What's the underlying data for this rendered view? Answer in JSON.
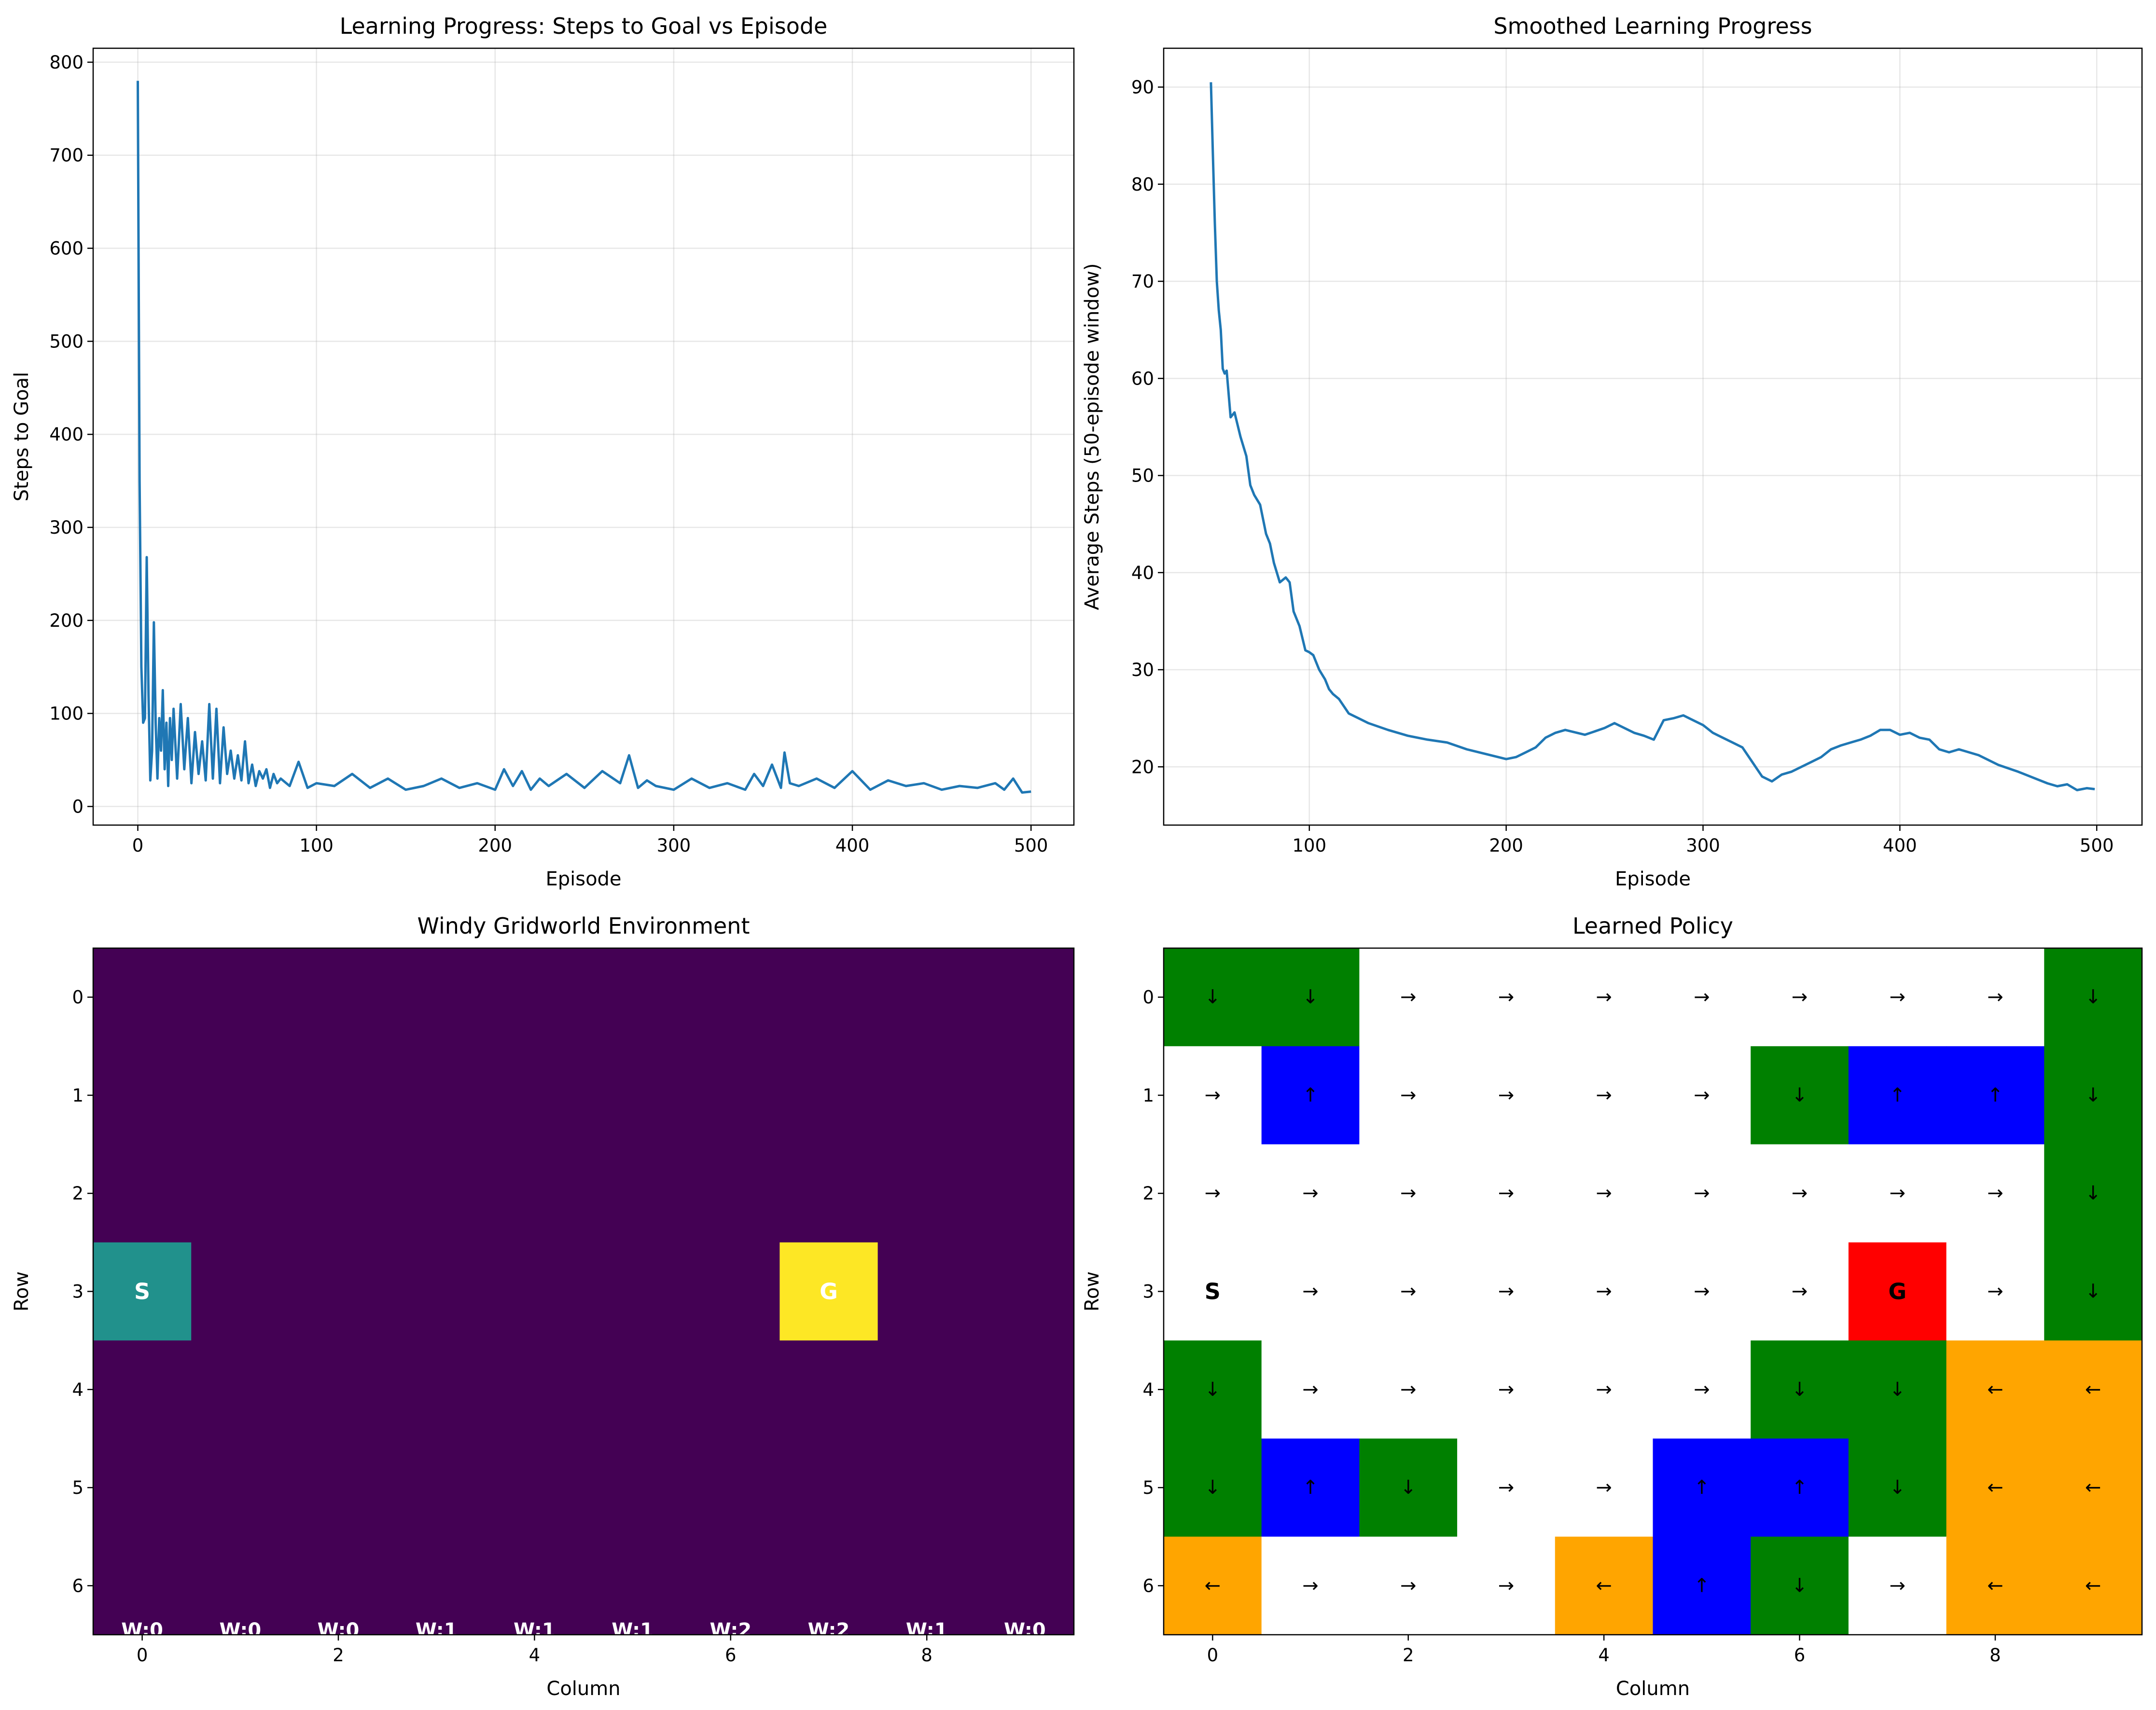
{
  "chart_data": [
    {
      "type": "line",
      "title": "Learning Progress: Steps to Goal vs Episode",
      "xlabel": "Episode",
      "ylabel": "Steps to Goal",
      "xlim": [
        -25,
        524
      ],
      "ylim": [
        -20,
        815
      ],
      "xticks": [
        0,
        100,
        200,
        300,
        400,
        500
      ],
      "yticks": [
        0,
        100,
        200,
        300,
        400,
        500,
        600,
        700,
        800
      ],
      "grid": true,
      "color": "#1f77b4",
      "series": [
        {
          "x": [
            0,
            1,
            2,
            3,
            4,
            5,
            6,
            7,
            8,
            9,
            10,
            11,
            12,
            13,
            14,
            15,
            16,
            17,
            18,
            19,
            20,
            22,
            24,
            26,
            28,
            30,
            32,
            34,
            36,
            38,
            40,
            42,
            44,
            46,
            48,
            50,
            52,
            54,
            56,
            58,
            60,
            62,
            64,
            66,
            68,
            70,
            72,
            74,
            76,
            78,
            80,
            85,
            90,
            95,
            100,
            110,
            120,
            130,
            140,
            150,
            160,
            170,
            180,
            190,
            200,
            205,
            210,
            215,
            220,
            225,
            230,
            240,
            250,
            260,
            270,
            275,
            280,
            285,
            290,
            300,
            310,
            320,
            330,
            340,
            345,
            350,
            355,
            360,
            362,
            365,
            370,
            380,
            390,
            400,
            410,
            420,
            430,
            440,
            450,
            460,
            470,
            480,
            485,
            490,
            495,
            500
          ],
          "y": [
            780,
            350,
            150,
            90,
            95,
            268,
            120,
            28,
            60,
            198,
            90,
            30,
            95,
            60,
            125,
            40,
            90,
            22,
            95,
            50,
            105,
            30,
            110,
            40,
            95,
            25,
            80,
            35,
            70,
            28,
            110,
            30,
            105,
            25,
            85,
            35,
            60,
            30,
            55,
            28,
            70,
            25,
            45,
            22,
            38,
            30,
            40,
            20,
            35,
            25,
            30,
            22,
            48,
            20,
            25,
            22,
            35,
            20,
            30,
            18,
            22,
            30,
            20,
            25,
            18,
            40,
            22,
            38,
            18,
            30,
            22,
            35,
            20,
            38,
            25,
            55,
            20,
            28,
            22,
            18,
            30,
            20,
            25,
            18,
            35,
            22,
            45,
            20,
            58,
            25,
            22,
            30,
            20,
            38,
            18,
            28,
            22,
            25,
            18,
            22,
            20,
            25,
            18,
            30,
            15,
            16
          ]
        }
      ]
    },
    {
      "type": "line",
      "title": "Smoothed Learning Progress",
      "xlabel": "Episode",
      "ylabel": "Average Steps (50-episode window)",
      "xlim": [
        26,
        523
      ],
      "ylim": [
        14,
        94
      ],
      "xticks": [
        100,
        200,
        300,
        400,
        500
      ],
      "yticks": [
        20,
        30,
        40,
        50,
        60,
        70,
        80,
        90
      ],
      "grid": true,
      "color": "#1f77b4",
      "series": [
        {
          "x": [
            50,
            51,
            52,
            53,
            54,
            55,
            56,
            57,
            58,
            60,
            62,
            65,
            68,
            70,
            72,
            75,
            78,
            80,
            82,
            85,
            88,
            90,
            92,
            95,
            98,
            100,
            102,
            105,
            108,
            110,
            112,
            115,
            120,
            125,
            130,
            140,
            150,
            160,
            170,
            180,
            190,
            200,
            205,
            210,
            215,
            220,
            225,
            230,
            240,
            250,
            255,
            260,
            265,
            270,
            275,
            280,
            285,
            290,
            295,
            300,
            305,
            310,
            315,
            320,
            325,
            330,
            335,
            340,
            345,
            350,
            355,
            360,
            365,
            370,
            375,
            380,
            385,
            390,
            395,
            400,
            405,
            410,
            415,
            420,
            425,
            430,
            440,
            450,
            460,
            470,
            475,
            480,
            485,
            490,
            495,
            499
          ],
          "y": [
            90.5,
            83,
            76,
            70,
            67,
            65,
            61,
            60.5,
            60.8,
            56,
            56.5,
            54,
            52,
            49,
            48,
            47,
            44,
            43,
            41,
            39,
            39.5,
            39,
            36,
            34.5,
            32,
            31.8,
            31.5,
            30,
            29,
            28,
            27.5,
            27,
            25.5,
            25,
            24.5,
            23.8,
            23.2,
            22.8,
            22.5,
            21.8,
            21.3,
            20.8,
            21,
            21.5,
            22,
            23,
            23.5,
            23.8,
            23.3,
            24,
            24.5,
            24,
            23.5,
            23.2,
            22.8,
            24.8,
            25,
            25.3,
            24.8,
            24.3,
            23.5,
            23,
            22.5,
            22,
            20.5,
            19,
            18.5,
            19.2,
            19.5,
            20,
            20.5,
            21,
            21.8,
            22.2,
            22.5,
            22.8,
            23.2,
            23.8,
            23.8,
            23.3,
            23.5,
            23,
            22.8,
            21.8,
            21.5,
            21.8,
            21.2,
            20.2,
            19.5,
            18.7,
            18.3,
            18,
            18.2,
            17.6,
            17.8,
            17.7
          ]
        }
      ]
    },
    {
      "type": "heatmap",
      "title": "Windy Gridworld Environment",
      "xlabel": "Column",
      "ylabel": "Row",
      "rows": 7,
      "cols": 10,
      "xticks": [
        0,
        2,
        4,
        6,
        8
      ],
      "yticks": [
        0,
        1,
        2,
        3,
        4,
        5,
        6
      ],
      "background": "#440154",
      "cells": [
        {
          "row": 3,
          "col": 0,
          "label": "S",
          "color": "#21918c"
        },
        {
          "row": 3,
          "col": 7,
          "label": "G",
          "color": "#fde725"
        }
      ],
      "wind_labels": [
        "W:0",
        "W:0",
        "W:0",
        "W:1",
        "W:1",
        "W:1",
        "W:2",
        "W:2",
        "W:1",
        "W:0"
      ]
    },
    {
      "type": "heatmap",
      "title": "Learned Policy",
      "xlabel": "Column",
      "ylabel": "Row",
      "rows": 7,
      "cols": 10,
      "xticks": [
        0,
        2,
        4,
        6,
        8
      ],
      "yticks": [
        0,
        1,
        2,
        3,
        4,
        5,
        6
      ],
      "action_colors": {
        "up": "#0000ff",
        "down": "#008000",
        "left": "#ffa500",
        "right": "#ffffff",
        "start": "#ffffff",
        "goal": "#ff0000"
      },
      "grid": [
        [
          "down",
          "down",
          "right",
          "right",
          "right",
          "right",
          "right",
          "right",
          "right",
          "down"
        ],
        [
          "right",
          "up",
          "right",
          "right",
          "right",
          "right",
          "down",
          "up",
          "up",
          "down"
        ],
        [
          "right",
          "right",
          "right",
          "right",
          "right",
          "right",
          "right",
          "right",
          "right",
          "down"
        ],
        [
          "start",
          "right",
          "right",
          "right",
          "right",
          "right",
          "right",
          "goal",
          "right",
          "down"
        ],
        [
          "down",
          "right",
          "right",
          "right",
          "right",
          "right",
          "down",
          "down",
          "left",
          "left"
        ],
        [
          "down",
          "up",
          "down",
          "right",
          "right",
          "up",
          "up",
          "down",
          "left",
          "left"
        ],
        [
          "left",
          "right",
          "right",
          "right",
          "left",
          "up",
          "down",
          "right",
          "left",
          "left"
        ]
      ],
      "symbols": {
        "up": "↑",
        "down": "↓",
        "left": "←",
        "right": "→",
        "start": "S",
        "goal": "G"
      }
    }
  ]
}
